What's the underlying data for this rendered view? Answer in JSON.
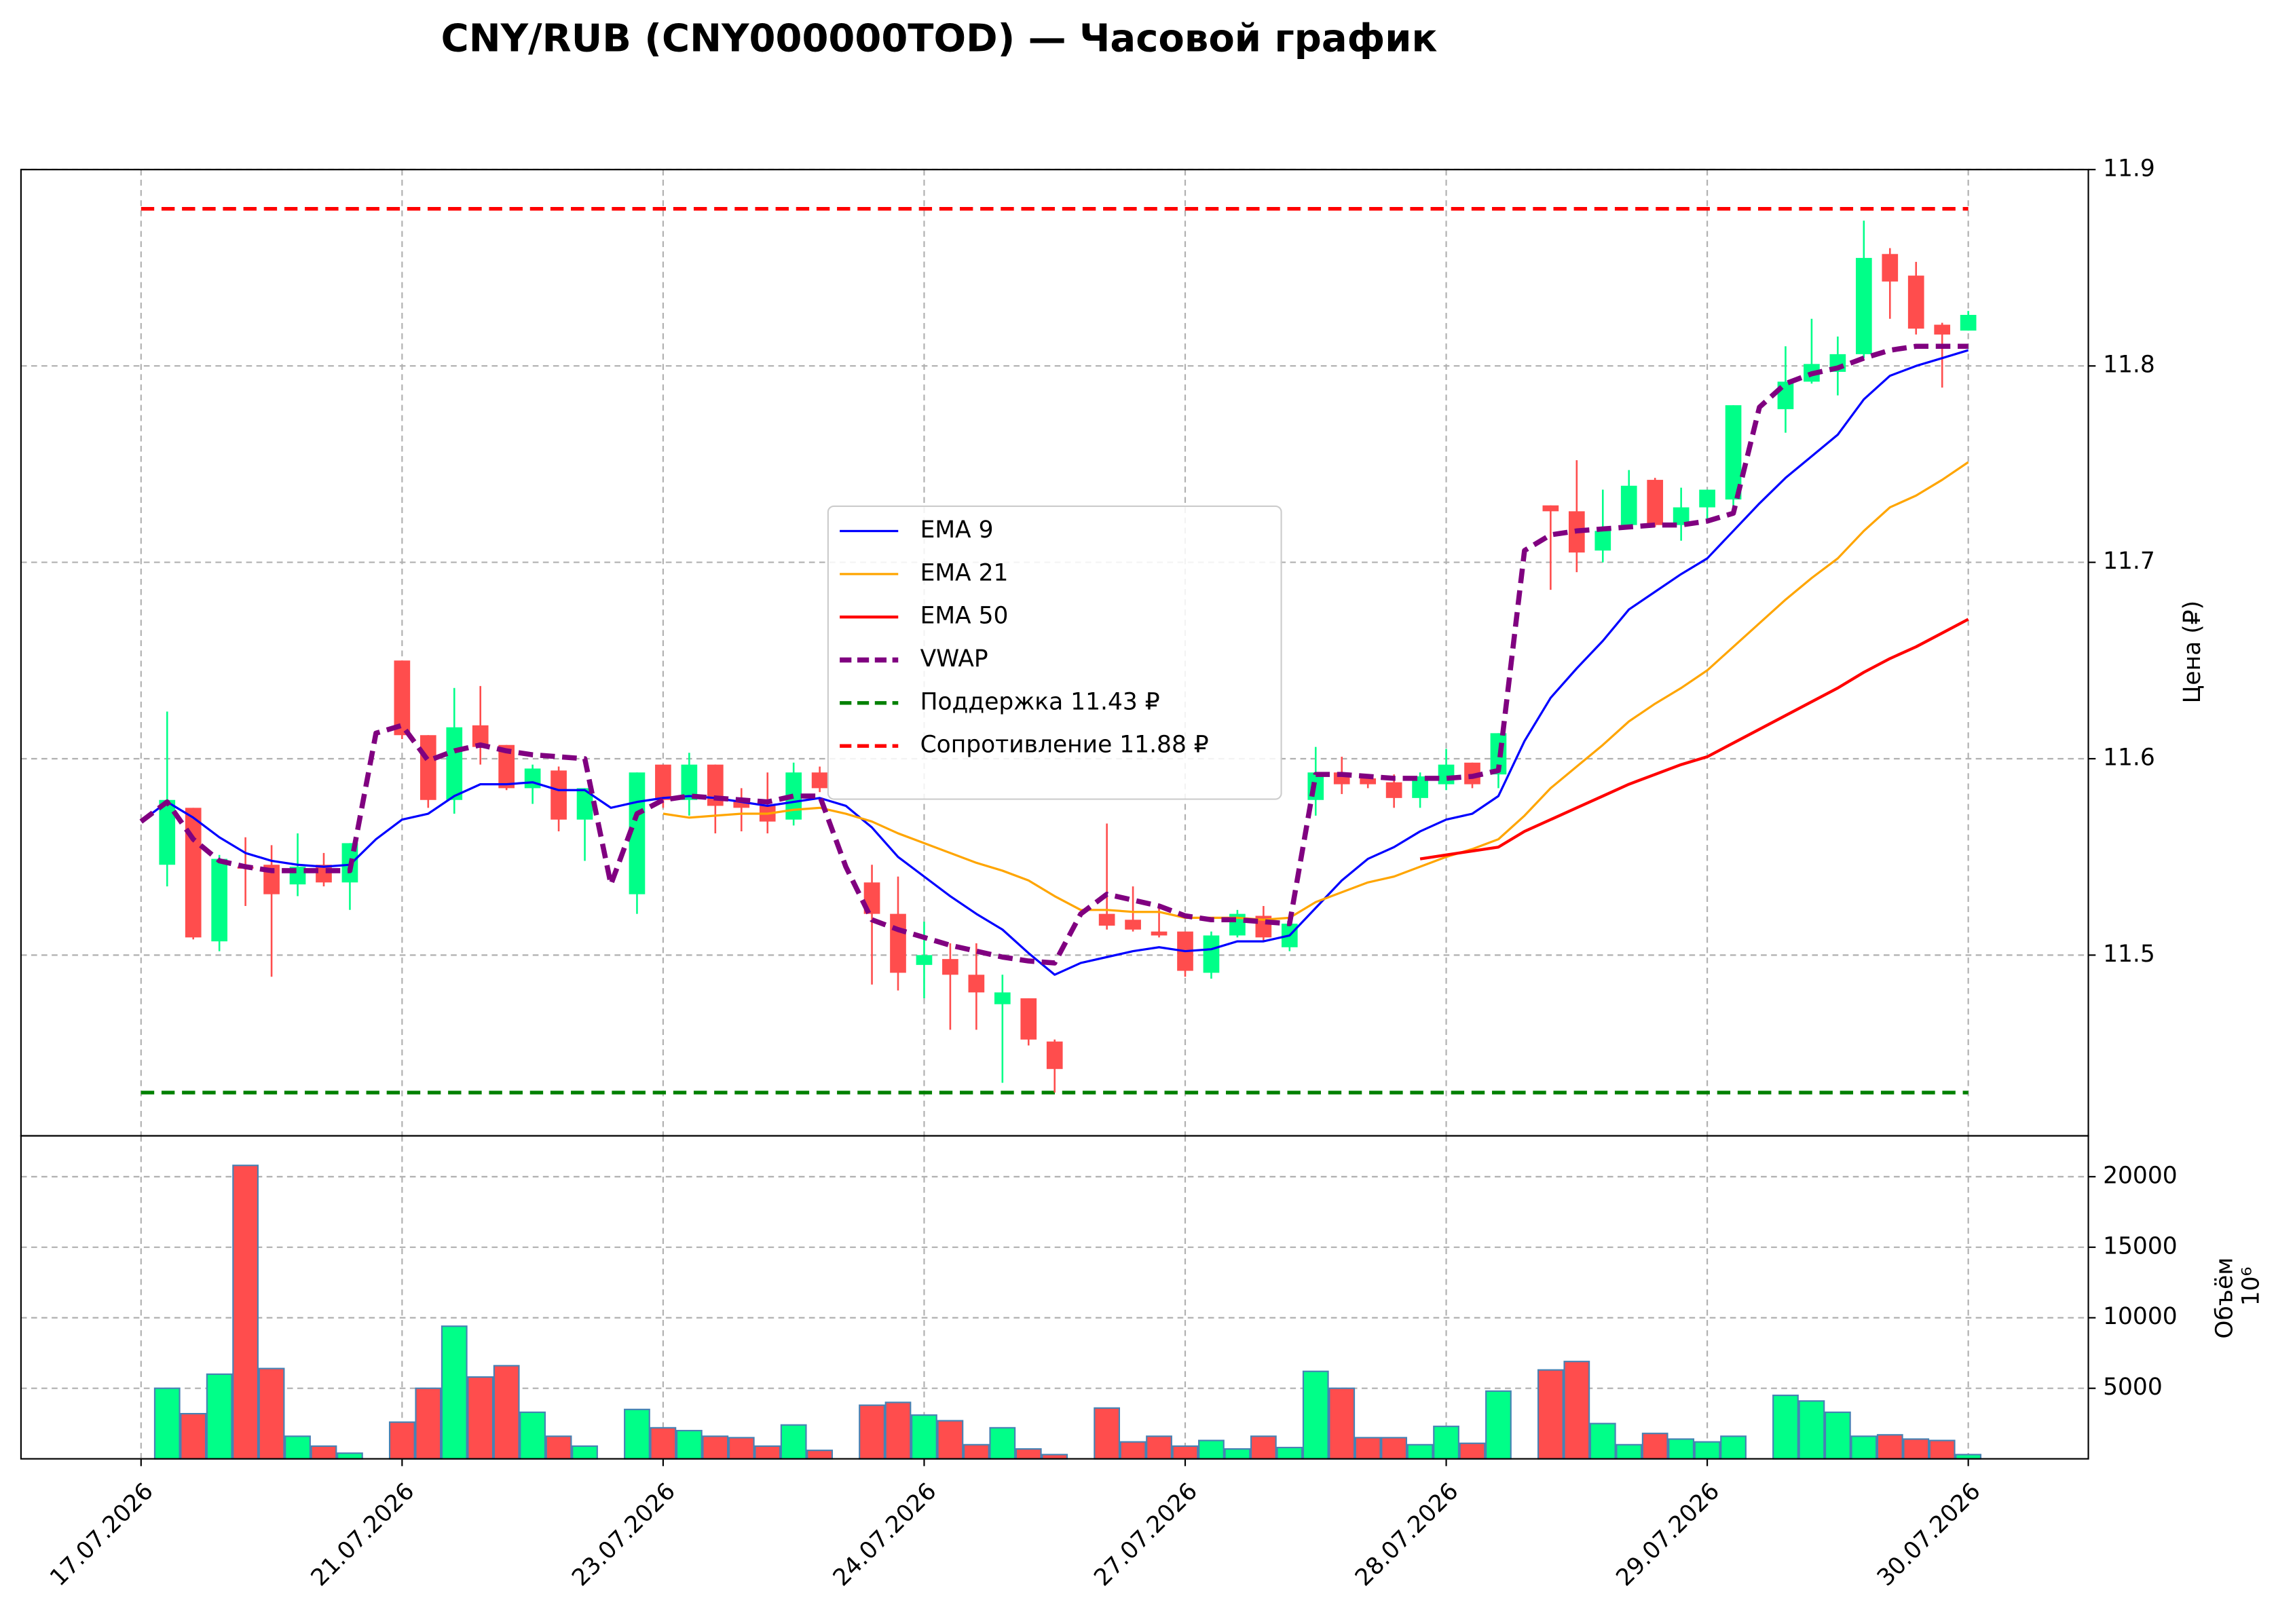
{
  "chart_data": {
    "type": "candlestick",
    "title": "CNY/RUB (CNY000000TOD) — Часовой график",
    "ylabel": "Цена (₽)",
    "categories": [
      "17.07.2026",
      null,
      null,
      null,
      null,
      null,
      null,
      null,
      null,
      null,
      "21.07.2026",
      null,
      null,
      null,
      null,
      null,
      null,
      null,
      null,
      null,
      "23.07.2026",
      null,
      null,
      null,
      null,
      null,
      null,
      null,
      null,
      null,
      "24.07.2026",
      null,
      null,
      null,
      null,
      null,
      null,
      null,
      null,
      null,
      "27.07.2026",
      null,
      null,
      null,
      null,
      null,
      null,
      null,
      null,
      null,
      "28.07.2026",
      null,
      null,
      null,
      null,
      null,
      null,
      null,
      null,
      null,
      "29.07.2026",
      null,
      null,
      null,
      null,
      null,
      null,
      null,
      null,
      null,
      "30.07.2026"
    ],
    "open": [
      null,
      11.546,
      11.575,
      11.507,
      11.545,
      11.546,
      11.536,
      11.546,
      11.537,
      null,
      11.65,
      11.612,
      11.579,
      11.617,
      11.607,
      11.585,
      11.594,
      11.569,
      null,
      11.531,
      11.597,
      11.579,
      11.597,
      11.578,
      11.576,
      11.569,
      11.593,
      null,
      11.537,
      11.521,
      11.495,
      11.498,
      11.49,
      11.475,
      11.478,
      11.456,
      null,
      11.521,
      11.518,
      11.512,
      11.512,
      11.491,
      11.51,
      11.52,
      11.504,
      11.579,
      11.593,
      11.59,
      11.588,
      11.58,
      11.587,
      11.598,
      11.592,
      null,
      11.729,
      11.726,
      11.706,
      11.719,
      11.742,
      11.719,
      11.728,
      11.732,
      null,
      11.778,
      11.792,
      11.797,
      11.806,
      11.857,
      11.846,
      11.821,
      11.818
    ],
    "high": [
      null,
      11.624,
      11.575,
      11.551,
      11.56,
      11.556,
      11.562,
      11.552,
      11.557,
      null,
      11.65,
      11.612,
      11.636,
      11.637,
      11.607,
      11.597,
      11.596,
      11.585,
      null,
      11.593,
      11.597,
      11.603,
      11.597,
      11.585,
      11.593,
      11.598,
      11.596,
      null,
      11.546,
      11.54,
      11.517,
      11.506,
      11.506,
      11.49,
      11.478,
      11.457,
      null,
      11.567,
      11.535,
      11.525,
      11.512,
      11.512,
      11.523,
      11.525,
      11.516,
      11.606,
      11.601,
      11.59,
      11.592,
      11.593,
      11.605,
      11.598,
      11.613,
      null,
      11.729,
      11.752,
      11.737,
      11.747,
      11.743,
      11.738,
      11.737,
      11.78,
      null,
      11.81,
      11.824,
      11.815,
      11.874,
      11.86,
      11.853,
      11.822,
      11.828
    ],
    "low": [
      null,
      11.535,
      11.508,
      11.502,
      11.525,
      11.489,
      11.53,
      11.535,
      11.523,
      null,
      11.61,
      11.575,
      11.572,
      11.597,
      11.584,
      11.577,
      11.563,
      11.548,
      null,
      11.521,
      11.575,
      11.571,
      11.562,
      11.563,
      11.562,
      11.566,
      11.583,
      null,
      11.485,
      11.482,
      11.478,
      11.462,
      11.462,
      11.435,
      11.454,
      11.43,
      null,
      11.513,
      11.512,
      11.509,
      11.489,
      11.488,
      11.509,
      11.507,
      11.502,
      11.571,
      11.582,
      11.585,
      11.575,
      11.575,
      11.584,
      11.585,
      11.585,
      null,
      11.686,
      11.695,
      11.7,
      11.717,
      11.718,
      11.711,
      11.72,
      11.728,
      null,
      11.766,
      11.791,
      11.785,
      11.804,
      11.824,
      11.816,
      11.789,
      11.818
    ],
    "close": [
      null,
      11.579,
      11.509,
      11.549,
      11.544,
      11.531,
      11.545,
      11.537,
      11.557,
      null,
      11.612,
      11.579,
      11.616,
      11.606,
      11.585,
      11.595,
      11.569,
      11.585,
      null,
      11.593,
      11.579,
      11.597,
      11.576,
      11.575,
      11.568,
      11.593,
      11.585,
      null,
      11.521,
      11.491,
      11.5,
      11.49,
      11.481,
      11.481,
      11.457,
      11.442,
      null,
      11.515,
      11.513,
      11.51,
      11.492,
      11.51,
      11.521,
      11.509,
      11.516,
      11.593,
      11.587,
      11.587,
      11.58,
      11.591,
      11.597,
      11.587,
      11.613,
      null,
      11.726,
      11.705,
      11.716,
      11.739,
      11.719,
      11.728,
      11.737,
      11.78,
      null,
      11.792,
      11.801,
      11.806,
      11.855,
      11.843,
      11.819,
      11.816,
      11.826
    ],
    "up_color": "#00ff88",
    "down_color": "#ff4d4d",
    "series": [
      {
        "name": "EMA 9",
        "color": "#0000ff",
        "width": 1.5,
        "linestyle": "solid",
        "values": [
          11.568,
          11.578,
          11.57,
          11.56,
          11.552,
          11.548,
          11.546,
          11.545,
          11.546,
          11.559,
          11.569,
          11.572,
          11.581,
          11.587,
          11.587,
          11.588,
          11.584,
          11.584,
          11.575,
          11.578,
          11.58,
          11.581,
          11.58,
          11.578,
          11.576,
          11.578,
          11.58,
          11.576,
          11.565,
          11.55,
          11.54,
          11.53,
          11.521,
          11.513,
          11.501,
          11.49,
          11.496,
          11.499,
          11.502,
          11.504,
          11.502,
          11.503,
          11.507,
          11.507,
          11.51,
          11.524,
          11.538,
          11.549,
          11.555,
          11.563,
          11.569,
          11.572,
          11.581,
          11.609,
          11.631,
          11.646,
          11.66,
          11.676,
          11.685,
          11.694,
          11.702,
          11.716,
          11.73,
          11.743,
          11.754,
          11.765,
          11.783,
          11.795,
          11.8,
          11.804,
          11.808
        ]
      },
      {
        "name": "EMA 21",
        "color": "#ffa500",
        "width": 1.5,
        "linestyle": "solid",
        "values": [
          null,
          null,
          null,
          null,
          null,
          null,
          null,
          null,
          null,
          null,
          null,
          null,
          null,
          null,
          null,
          null,
          null,
          null,
          null,
          null,
          11.572,
          11.57,
          11.571,
          11.572,
          11.572,
          11.574,
          11.575,
          11.572,
          11.568,
          11.562,
          11.557,
          11.552,
          11.547,
          11.543,
          11.538,
          11.53,
          11.523,
          11.523,
          11.522,
          11.522,
          11.519,
          11.519,
          11.519,
          11.518,
          11.519,
          11.527,
          11.532,
          11.537,
          11.54,
          11.545,
          11.55,
          11.554,
          11.559,
          11.571,
          11.585,
          11.596,
          11.607,
          11.619,
          11.628,
          11.636,
          11.645,
          11.657,
          11.669,
          11.681,
          11.692,
          11.702,
          11.716,
          11.728,
          11.734,
          11.742,
          11.751
        ]
      },
      {
        "name": "EMA 50",
        "color": "#ff0000",
        "width": 2,
        "linestyle": "solid",
        "values": [
          null,
          null,
          null,
          null,
          null,
          null,
          null,
          null,
          null,
          null,
          null,
          null,
          null,
          null,
          null,
          null,
          null,
          null,
          null,
          null,
          null,
          null,
          null,
          null,
          null,
          null,
          null,
          null,
          null,
          null,
          null,
          null,
          null,
          null,
          null,
          null,
          null,
          null,
          null,
          null,
          null,
          null,
          null,
          null,
          null,
          null,
          null,
          null,
          null,
          11.549,
          11.551,
          11.553,
          11.555,
          11.563,
          11.569,
          11.575,
          11.581,
          11.587,
          11.592,
          11.597,
          11.601,
          11.608,
          11.615,
          11.622,
          11.629,
          11.636,
          11.644,
          11.651,
          11.657,
          11.664,
          11.671
        ]
      },
      {
        "name": "VWAP",
        "color": "#800080",
        "width": 3.5,
        "linestyle": "dashed",
        "values": [
          11.568,
          11.578,
          11.559,
          11.548,
          11.545,
          11.543,
          11.543,
          11.543,
          11.543,
          11.613,
          11.617,
          11.599,
          11.604,
          11.607,
          11.604,
          11.602,
          11.601,
          11.6,
          11.536,
          11.572,
          11.579,
          11.581,
          11.58,
          11.579,
          11.578,
          11.581,
          11.581,
          11.545,
          11.518,
          11.513,
          11.509,
          11.505,
          11.502,
          11.499,
          11.497,
          11.496,
          11.521,
          11.531,
          11.528,
          11.525,
          11.52,
          11.518,
          11.518,
          11.517,
          11.516,
          11.592,
          11.592,
          11.591,
          11.59,
          11.59,
          11.59,
          11.591,
          11.594,
          11.706,
          11.714,
          11.716,
          11.717,
          11.718,
          11.719,
          11.719,
          11.721,
          11.725,
          11.779,
          11.791,
          11.796,
          11.799,
          11.804,
          11.808,
          11.81,
          11.81,
          11.81
        ]
      }
    ],
    "levels": [
      {
        "name": "Поддержка 11.43 ₽",
        "value": 11.43,
        "color": "#008000"
      },
      {
        "name": "Сопротивление 11.88 ₽",
        "value": 11.88,
        "color": "#ff0000"
      }
    ],
    "ylim": [
      11.408,
      11.9
    ],
    "yticks": [
      11.5,
      11.6,
      11.7,
      11.8,
      11.9
    ],
    "grid": true,
    "legend": "center",
    "volume": {
      "type": "bar",
      "ylabel": "Объём",
      "scale_label": "10⁶",
      "values": [
        null,
        5000,
        3200,
        6000,
        20800,
        6400,
        1600,
        900,
        400,
        null,
        2600,
        5000,
        9400,
        5800,
        6600,
        3300,
        1600,
        900,
        null,
        3500,
        2200,
        2000,
        1600,
        1500,
        900,
        2400,
        600,
        null,
        3800,
        4000,
        3100,
        2700,
        1000,
        2200,
        700,
        300,
        null,
        3600,
        1200,
        1600,
        900,
        1300,
        700,
        1600,
        800,
        6200,
        5000,
        1500,
        1500,
        1000,
        2300,
        1100,
        4800,
        null,
        6300,
        6900,
        2500,
        1000,
        1800,
        1400,
        1200,
        1600,
        null,
        4500,
        4100,
        3300,
        1600,
        1700,
        1400,
        1300,
        300
      ],
      "edge_color": "#4682b4",
      "ylim": [
        0,
        22900
      ],
      "yticks": [
        5000,
        10000,
        15000,
        20000
      ]
    }
  }
}
